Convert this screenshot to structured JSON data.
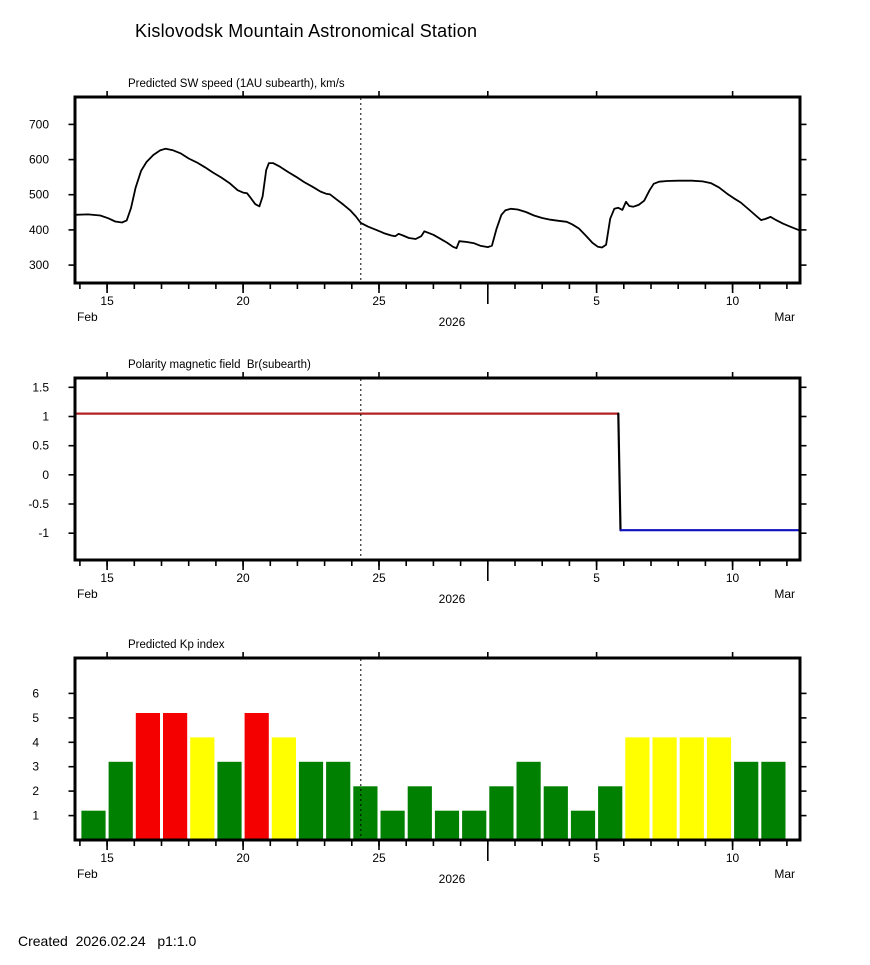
{
  "page": {
    "title": "Kislovodsk Mountain Astronomical Station",
    "footer": "Created  2026.02.24   p1:1.0"
  },
  "x_axis": {
    "start_label": "Feb",
    "center_label": "2026",
    "end_label": "Mar",
    "domain_feb_days": [
      13.82,
      40.48
    ],
    "minor_tick_days": {
      "from": 14,
      "to": 40,
      "step": 1
    },
    "major_ticks": [
      {
        "day": 15,
        "label": "15"
      },
      {
        "day": 20,
        "label": "20"
      },
      {
        "day": 25,
        "label": "25"
      },
      {
        "day": 29,
        "label": ""
      },
      {
        "day": 33,
        "label": "5"
      },
      {
        "day": 38,
        "label": "10"
      }
    ],
    "forecast_line_day": 24.33,
    "note": "day units are days of February 2026; 29 = Mar 1"
  },
  "chart_data": [
    {
      "type": "line",
      "title": "Predicted SW speed (1AU subearth), km/s",
      "ylabel": "km/s",
      "ylim": [
        249,
        778
      ],
      "yticks": [
        {
          "value": 700,
          "label": "700"
        },
        {
          "value": 600,
          "label": "600"
        },
        {
          "value": 500,
          "label": "500"
        },
        {
          "value": 400,
          "label": "400"
        },
        {
          "value": 300,
          "label": "300"
        }
      ],
      "series": [
        {
          "name": "predicted-sw-speed",
          "color": "#000000",
          "points": [
            [
              13.82,
              443
            ],
            [
              14.3,
              444
            ],
            [
              14.75,
              441
            ],
            [
              15.05,
              433
            ],
            [
              15.3,
              424
            ],
            [
              15.55,
              421
            ],
            [
              15.72,
              427
            ],
            [
              15.88,
              462
            ],
            [
              16.05,
              520
            ],
            [
              16.25,
              568
            ],
            [
              16.45,
              593
            ],
            [
              16.7,
              613
            ],
            [
              16.95,
              626
            ],
            [
              17.15,
              631
            ],
            [
              17.4,
              627
            ],
            [
              17.7,
              618
            ],
            [
              18.0,
              603
            ],
            [
              18.3,
              592
            ],
            [
              18.6,
              578
            ],
            [
              18.9,
              563
            ],
            [
              19.2,
              549
            ],
            [
              19.5,
              533
            ],
            [
              19.8,
              513
            ],
            [
              20.0,
              506
            ],
            [
              20.15,
              504
            ],
            [
              20.3,
              489
            ],
            [
              20.45,
              473
            ],
            [
              20.6,
              467
            ],
            [
              20.72,
              495
            ],
            [
              20.85,
              570
            ],
            [
              20.95,
              590
            ],
            [
              21.1,
              590
            ],
            [
              21.35,
              580
            ],
            [
              21.65,
              565
            ],
            [
              21.95,
              551
            ],
            [
              22.25,
              536
            ],
            [
              22.55,
              523
            ],
            [
              22.85,
              509
            ],
            [
              23.05,
              503
            ],
            [
              23.2,
              501
            ],
            [
              23.45,
              486
            ],
            [
              23.7,
              471
            ],
            [
              23.95,
              455
            ],
            [
              24.15,
              438
            ],
            [
              24.33,
              420
            ],
            [
              24.6,
              409
            ],
            [
              24.9,
              400
            ],
            [
              25.2,
              390
            ],
            [
              25.45,
              384
            ],
            [
              25.6,
              382
            ],
            [
              25.72,
              389
            ],
            [
              25.88,
              384
            ],
            [
              26.1,
              377
            ],
            [
              26.35,
              374
            ],
            [
              26.55,
              382
            ],
            [
              26.67,
              396
            ],
            [
              26.8,
              392
            ],
            [
              27.0,
              386
            ],
            [
              27.25,
              375
            ],
            [
              27.5,
              364
            ],
            [
              27.72,
              352
            ],
            [
              27.85,
              348
            ],
            [
              27.95,
              368
            ],
            [
              28.2,
              366
            ],
            [
              28.5,
              362
            ],
            [
              28.72,
              355
            ],
            [
              29.0,
              351
            ],
            [
              29.15,
              355
            ],
            [
              29.32,
              403
            ],
            [
              29.5,
              443
            ],
            [
              29.65,
              456
            ],
            [
              29.85,
              460
            ],
            [
              30.1,
              458
            ],
            [
              30.4,
              451
            ],
            [
              30.7,
              441
            ],
            [
              31.0,
              434
            ],
            [
              31.3,
              429
            ],
            [
              31.6,
              426
            ],
            [
              31.9,
              423
            ],
            [
              32.1,
              416
            ],
            [
              32.35,
              404
            ],
            [
              32.6,
              384
            ],
            [
              32.85,
              363
            ],
            [
              33.05,
              352
            ],
            [
              33.2,
              350
            ],
            [
              33.35,
              358
            ],
            [
              33.5,
              432
            ],
            [
              33.65,
              460
            ],
            [
              33.8,
              463
            ],
            [
              33.95,
              457
            ],
            [
              34.08,
              480
            ],
            [
              34.2,
              468
            ],
            [
              34.35,
              466
            ],
            [
              34.55,
              471
            ],
            [
              34.75,
              483
            ],
            [
              34.95,
              513
            ],
            [
              35.1,
              531
            ],
            [
              35.3,
              537
            ],
            [
              35.6,
              539
            ],
            [
              36.0,
              540
            ],
            [
              36.5,
              540
            ],
            [
              36.9,
              538
            ],
            [
              37.2,
              533
            ],
            [
              37.5,
              521
            ],
            [
              37.8,
              503
            ],
            [
              38.05,
              490
            ],
            [
              38.3,
              478
            ],
            [
              38.6,
              458
            ],
            [
              38.85,
              441
            ],
            [
              39.05,
              428
            ],
            [
              39.2,
              431
            ],
            [
              39.4,
              437
            ],
            [
              39.6,
              428
            ],
            [
              39.85,
              418
            ],
            [
              40.1,
              410
            ],
            [
              40.48,
              398
            ]
          ]
        }
      ]
    },
    {
      "type": "line",
      "title": "Polarity magnetic field  Br(subearth)",
      "ylim": [
        -1.46,
        1.66
      ],
      "yticks": [
        {
          "value": 1.5,
          "label": "1.5"
        },
        {
          "value": 1,
          "label": "1"
        },
        {
          "value": 0.5,
          "label": "0.5"
        },
        {
          "value": 0,
          "label": "0"
        },
        {
          "value": -0.5,
          "label": "-0.5"
        },
        {
          "value": -1,
          "label": "-1"
        }
      ],
      "series": [
        {
          "name": "polarity-positive",
          "color": "#b22222",
          "points": [
            [
              13.82,
              1.05
            ],
            [
              33.8,
              1.05
            ]
          ]
        },
        {
          "name": "polarity-transition",
          "color": "#000000",
          "points": [
            [
              33.8,
              1.05
            ],
            [
              33.88,
              -0.95
            ]
          ]
        },
        {
          "name": "polarity-negative",
          "color": "#0f0fbe",
          "points": [
            [
              33.88,
              -0.95
            ],
            [
              40.48,
              -0.95
            ]
          ]
        }
      ]
    },
    {
      "type": "bar",
      "title": "Predicted Kp index",
      "ylim": [
        0,
        7.45
      ],
      "yticks": [
        {
          "value": 6,
          "label": "6"
        },
        {
          "value": 5,
          "label": "5"
        },
        {
          "value": 4,
          "label": "4"
        },
        {
          "value": 3,
          "label": "3"
        },
        {
          "value": 2,
          "label": "2"
        },
        {
          "value": 1,
          "label": "1"
        }
      ],
      "palette": {
        "green": "#008000",
        "yellow": "#ffff00",
        "red": "#f40000"
      },
      "bars": [
        {
          "day": 14,
          "date": "Feb 14",
          "value": 1.2,
          "color": "green"
        },
        {
          "day": 15,
          "date": "Feb 15",
          "value": 3.2,
          "color": "green"
        },
        {
          "day": 16,
          "date": "Feb 16",
          "value": 5.2,
          "color": "red"
        },
        {
          "day": 17,
          "date": "Feb 17",
          "value": 5.2,
          "color": "red"
        },
        {
          "day": 18,
          "date": "Feb 18",
          "value": 4.2,
          "color": "yellow"
        },
        {
          "day": 19,
          "date": "Feb 19",
          "value": 3.2,
          "color": "green"
        },
        {
          "day": 20,
          "date": "Feb 20",
          "value": 5.2,
          "color": "red"
        },
        {
          "day": 21,
          "date": "Feb 21",
          "value": 4.2,
          "color": "yellow"
        },
        {
          "day": 22,
          "date": "Feb 22",
          "value": 3.2,
          "color": "green"
        },
        {
          "day": 23,
          "date": "Feb 23",
          "value": 3.2,
          "color": "green"
        },
        {
          "day": 24,
          "date": "Feb 24",
          "value": 2.2,
          "color": "green"
        },
        {
          "day": 25,
          "date": "Feb 25",
          "value": 1.2,
          "color": "green"
        },
        {
          "day": 26,
          "date": "Feb 26",
          "value": 2.2,
          "color": "green"
        },
        {
          "day": 27,
          "date": "Feb 27",
          "value": 1.2,
          "color": "green"
        },
        {
          "day": 28,
          "date": "Feb 28",
          "value": 1.2,
          "color": "green"
        },
        {
          "day": 29,
          "date": "Mar 1",
          "value": 2.2,
          "color": "green"
        },
        {
          "day": 30,
          "date": "Mar 2",
          "value": 3.2,
          "color": "green"
        },
        {
          "day": 31,
          "date": "Mar 3",
          "value": 2.2,
          "color": "green"
        },
        {
          "day": 32,
          "date": "Mar 4",
          "value": 1.2,
          "color": "green"
        },
        {
          "day": 33,
          "date": "Mar 5",
          "value": 2.2,
          "color": "green"
        },
        {
          "day": 34,
          "date": "Mar 6",
          "value": 4.2,
          "color": "yellow"
        },
        {
          "day": 35,
          "date": "Mar 7",
          "value": 4.2,
          "color": "yellow"
        },
        {
          "day": 36,
          "date": "Mar 8",
          "value": 4.2,
          "color": "yellow"
        },
        {
          "day": 37,
          "date": "Mar 9",
          "value": 4.2,
          "color": "yellow"
        },
        {
          "day": 38,
          "date": "Mar 10",
          "value": 3.2,
          "color": "green"
        },
        {
          "day": 39,
          "date": "Mar 11",
          "value": 3.2,
          "color": "green"
        }
      ]
    }
  ]
}
